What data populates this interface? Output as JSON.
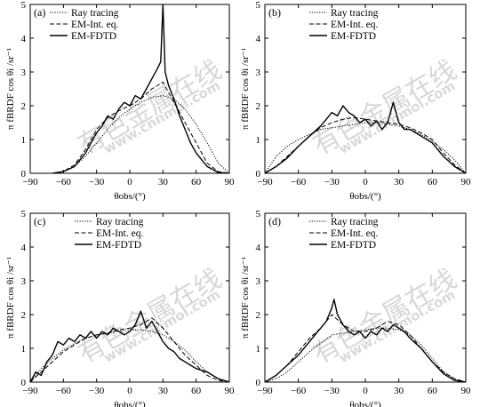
{
  "watermark": {
    "cn": "有色金属在线",
    "en": "www.cnnmol.com"
  },
  "chart_data": [
    {
      "panel": "(a)",
      "type": "line",
      "xlabel": "θobs/(°)",
      "ylabel": "π fBRDF cos θi /sr⁻¹",
      "xlim": [
        -90,
        90
      ],
      "ylim": [
        0,
        5
      ],
      "xticks": [
        -90,
        -60,
        -30,
        0,
        30,
        60,
        90
      ],
      "yticks": [
        0,
        1,
        2,
        3,
        4,
        5
      ],
      "legend": "top-left",
      "series": [
        {
          "name": "Ray tracing",
          "style": "dotted",
          "x": [
            -70,
            -60,
            -50,
            -40,
            -30,
            -20,
            -10,
            0,
            10,
            20,
            30,
            40,
            50,
            60,
            70,
            80,
            90
          ],
          "y": [
            0,
            0.05,
            0.2,
            0.5,
            0.9,
            1.3,
            1.65,
            1.9,
            2.1,
            2.25,
            2.3,
            2.2,
            1.9,
            1.45,
            0.9,
            0.3,
            0
          ]
        },
        {
          "name": "EM-Int. eq.",
          "style": "dashed",
          "x": [
            -70,
            -60,
            -50,
            -40,
            -30,
            -20,
            -10,
            0,
            10,
            20,
            30,
            40,
            50,
            60,
            70,
            80,
            90
          ],
          "y": [
            0,
            0.05,
            0.25,
            0.7,
            1.3,
            1.65,
            1.85,
            2.0,
            2.2,
            2.5,
            2.7,
            2.1,
            1.5,
            0.9,
            0.3,
            0.05,
            0
          ]
        },
        {
          "name": "EM-FDTD",
          "style": "solid",
          "x": [
            -70,
            -60,
            -50,
            -40,
            -35,
            -30,
            -25,
            -20,
            -15,
            -10,
            -5,
            0,
            5,
            10,
            15,
            20,
            25,
            28,
            30,
            32,
            35,
            40,
            45,
            50,
            55,
            60,
            70,
            80,
            90
          ],
          "y": [
            0,
            0.05,
            0.2,
            0.6,
            0.9,
            1.2,
            1.4,
            1.7,
            1.6,
            1.9,
            2.1,
            2.0,
            2.3,
            2.2,
            2.5,
            2.8,
            3.1,
            3.3,
            5.0,
            3.0,
            2.6,
            2.2,
            1.7,
            1.3,
            0.9,
            0.6,
            0.2,
            0.02,
            0
          ]
        }
      ]
    },
    {
      "panel": "(b)",
      "type": "line",
      "xlabel": "θobs/(°)",
      "ylabel": "π fBRDF cos θi /sr⁻¹",
      "xlim": [
        -90,
        90
      ],
      "ylim": [
        0,
        5
      ],
      "xticks": [
        -90,
        -60,
        -30,
        0,
        30,
        60,
        90
      ],
      "yticks": [
        0,
        1,
        2,
        3,
        4,
        5
      ],
      "legend": "top-center",
      "series": [
        {
          "name": "Ray tracing",
          "style": "dotted",
          "x": [
            -90,
            -80,
            -70,
            -60,
            -50,
            -40,
            -30,
            -20,
            -10,
            0,
            10,
            20,
            30,
            40,
            50,
            60,
            70,
            80,
            90
          ],
          "y": [
            0,
            0.5,
            0.8,
            1.0,
            1.15,
            1.3,
            1.35,
            1.4,
            1.45,
            1.5,
            1.5,
            1.45,
            1.4,
            1.3,
            1.15,
            0.95,
            0.7,
            0.4,
            0
          ]
        },
        {
          "name": "EM-Int. eq.",
          "style": "dashed",
          "x": [
            -90,
            -80,
            -70,
            -60,
            -50,
            -40,
            -30,
            -20,
            -10,
            0,
            10,
            20,
            30,
            40,
            50,
            60,
            70,
            80,
            90
          ],
          "y": [
            0,
            0.2,
            0.5,
            0.8,
            1.1,
            1.35,
            1.5,
            1.6,
            1.65,
            1.6,
            1.55,
            1.5,
            1.45,
            1.35,
            1.2,
            1.0,
            0.6,
            0.25,
            0
          ]
        },
        {
          "name": "EM-FDTD",
          "style": "solid",
          "x": [
            -90,
            -80,
            -70,
            -60,
            -50,
            -40,
            -35,
            -30,
            -25,
            -20,
            -15,
            -10,
            -5,
            0,
            5,
            10,
            15,
            20,
            25,
            30,
            35,
            40,
            50,
            60,
            70,
            80,
            90
          ],
          "y": [
            0,
            0.2,
            0.45,
            0.8,
            1.1,
            1.4,
            1.6,
            1.8,
            1.7,
            2.0,
            1.8,
            1.7,
            1.5,
            1.6,
            1.4,
            1.55,
            1.3,
            1.5,
            2.1,
            1.5,
            1.3,
            1.3,
            1.1,
            0.9,
            0.5,
            0.2,
            0
          ]
        }
      ]
    },
    {
      "panel": "(c)",
      "type": "line",
      "xlabel": "θobs/(°)",
      "ylabel": "π fBRDF cos θi /sr⁻¹",
      "xlim": [
        -90,
        90
      ],
      "ylim": [
        0,
        5
      ],
      "xticks": [
        -90,
        -60,
        -30,
        0,
        30,
        60,
        90
      ],
      "yticks": [
        0,
        1,
        2,
        3,
        4,
        5
      ],
      "legend": "top-center",
      "series": [
        {
          "name": "Ray tracing",
          "style": "dotted",
          "x": [
            -90,
            -80,
            -70,
            -60,
            -50,
            -40,
            -30,
            -20,
            -10,
            0,
            10,
            20,
            30,
            40,
            50,
            60,
            70,
            80,
            90
          ],
          "y": [
            0,
            0.4,
            0.7,
            0.95,
            1.15,
            1.3,
            1.4,
            1.45,
            1.5,
            1.55,
            1.55,
            1.5,
            1.4,
            1.2,
            0.95,
            0.6,
            0.3,
            0.1,
            0
          ]
        },
        {
          "name": "EM-Int. eq.",
          "style": "dashed",
          "x": [
            -90,
            -80,
            -70,
            -60,
            -50,
            -40,
            -30,
            -20,
            -10,
            0,
            10,
            20,
            30,
            40,
            50,
            60,
            70,
            80,
            90
          ],
          "y": [
            0,
            0.3,
            0.6,
            0.9,
            1.1,
            1.3,
            1.4,
            1.45,
            1.55,
            1.6,
            1.7,
            1.9,
            1.6,
            1.2,
            0.8,
            0.5,
            0.2,
            0.05,
            0
          ]
        },
        {
          "name": "EM-FDTD",
          "style": "solid",
          "x": [
            -90,
            -85,
            -80,
            -75,
            -70,
            -65,
            -60,
            -55,
            -50,
            -45,
            -40,
            -35,
            -30,
            -25,
            -20,
            -15,
            -10,
            -5,
            0,
            5,
            10,
            15,
            20,
            25,
            30,
            35,
            40,
            45,
            50,
            55,
            60,
            70,
            80,
            90
          ],
          "y": [
            0,
            0.3,
            0.2,
            0.6,
            0.8,
            1.2,
            1.1,
            1.3,
            1.2,
            1.4,
            1.3,
            1.5,
            1.3,
            1.5,
            1.4,
            1.6,
            1.5,
            1.4,
            1.5,
            1.7,
            2.1,
            1.6,
            1.8,
            1.5,
            1.2,
            1.0,
            0.9,
            0.7,
            0.6,
            0.5,
            0.4,
            0.3,
            0.1,
            0
          ]
        }
      ]
    },
    {
      "panel": "(d)",
      "type": "line",
      "xlabel": "θobs/(°)",
      "ylabel": "π fBRDF cos θi /sr⁻¹",
      "xlim": [
        -90,
        90
      ],
      "ylim": [
        0,
        5
      ],
      "xticks": [
        -90,
        -60,
        -30,
        0,
        30,
        60,
        90
      ],
      "yticks": [
        0,
        1,
        2,
        3,
        4,
        5
      ],
      "legend": "top-center",
      "series": [
        {
          "name": "Ray tracing",
          "style": "dotted",
          "x": [
            -90,
            -80,
            -70,
            -60,
            -50,
            -40,
            -30,
            -20,
            -10,
            0,
            10,
            20,
            30,
            40,
            50,
            60,
            70,
            80,
            90
          ],
          "y": [
            0,
            0.1,
            0.3,
            0.6,
            0.9,
            1.15,
            1.4,
            1.45,
            1.5,
            1.55,
            1.6,
            1.6,
            1.55,
            1.4,
            1.1,
            0.7,
            0.3,
            0.1,
            0
          ]
        },
        {
          "name": "EM-Int. eq.",
          "style": "dashed",
          "x": [
            -90,
            -80,
            -70,
            -60,
            -50,
            -40,
            -30,
            -20,
            -10,
            0,
            10,
            20,
            30,
            40,
            50,
            60,
            70,
            80,
            90
          ],
          "y": [
            0,
            0.2,
            0.5,
            0.9,
            1.3,
            1.6,
            2.0,
            1.7,
            1.5,
            1.5,
            1.6,
            1.8,
            1.7,
            1.4,
            1.0,
            0.6,
            0.3,
            0.1,
            0
          ]
        },
        {
          "name": "EM-FDTD",
          "style": "solid",
          "x": [
            -90,
            -80,
            -70,
            -60,
            -50,
            -45,
            -40,
            -35,
            -30,
            -28,
            -25,
            -20,
            -15,
            -10,
            -5,
            0,
            5,
            10,
            15,
            20,
            25,
            30,
            35,
            40,
            50,
            60,
            70,
            80,
            90
          ],
          "y": [
            0,
            0.2,
            0.5,
            0.8,
            1.2,
            1.4,
            1.6,
            1.8,
            2.2,
            2.45,
            2.0,
            1.7,
            1.5,
            1.4,
            1.5,
            1.3,
            1.5,
            1.4,
            1.6,
            1.5,
            1.7,
            1.6,
            1.5,
            1.3,
            1.0,
            0.6,
            0.25,
            0.05,
            0
          ]
        }
      ]
    }
  ]
}
